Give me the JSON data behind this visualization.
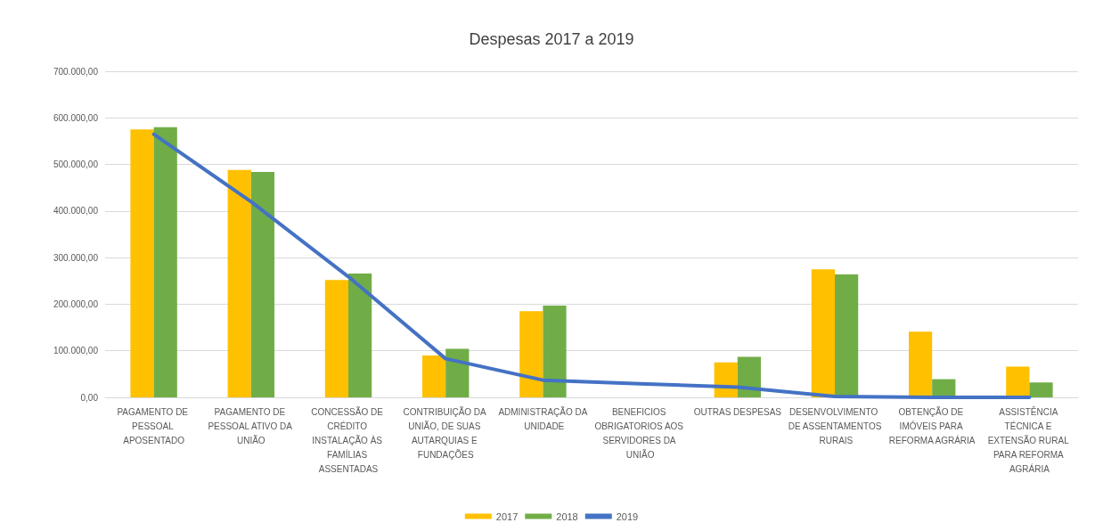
{
  "chart_data": {
    "type": "bar",
    "title": "Despesas 2017 a 2019",
    "categories": [
      "PAGAMENTO DE PESSOAL APOSENTADO",
      "PAGAMENTO DE PESSOAL ATIVO DA UNIÃO",
      "CONCESSÃO DE CRÉDITO INSTALAÇÃO ÀS FAMÍLIAS ASSENTADAS",
      "CONTRIBUIÇÃO DA UNIÃO, DE SUAS AUTARQUIAS E FUNDAÇÕES",
      "ADMINISTRAÇÃO DA UNIDADE",
      "BENEFICIOS OBRIGATORIOS AOS SERVIDORES DA UNIÃO",
      "OUTRAS DESPESAS",
      "DESENVOLVIMENTO DE ASSENTAMENTOS RURAIS",
      "OBTENÇÃO DE IMÓVEIS PARA REFORMA AGRÁRIA",
      "ASSISTÊNCIA TÉCNICA E EXTENSÃO RURAL PARA REFORMA AGRÁRIA"
    ],
    "series": [
      {
        "name": "2017",
        "color": "#ffc000",
        "values": [
          575000,
          488000,
          252000,
          90000,
          185000,
          null,
          75000,
          275000,
          141000,
          66000
        ]
      },
      {
        "name": "2018",
        "color": "#70ad47",
        "values": [
          580000,
          484000,
          266000,
          104000,
          197000,
          null,
          87000,
          264000,
          39000,
          32000
        ]
      },
      {
        "name": "2019",
        "type": "line",
        "color": "#4472c4",
        "values": [
          565000,
          420000,
          259000,
          83000,
          37000,
          29000,
          22000,
          2000,
          0,
          0
        ]
      }
    ],
    "ylim": [
      0,
      700000
    ],
    "yticks": [
      {
        "value": 0,
        "label": "0,00"
      },
      {
        "value": 100000,
        "label": "100.000,00"
      },
      {
        "value": 200000,
        "label": "200.000,00"
      },
      {
        "value": 300000,
        "label": "300.000,00"
      },
      {
        "value": 400000,
        "label": "400.000,00"
      },
      {
        "value": 500000,
        "label": "500.000,00"
      },
      {
        "value": 600000,
        "label": "600.000,00"
      },
      {
        "value": 700000,
        "label": "700.000,00"
      }
    ],
    "grid": "y",
    "legend": "bottom",
    "marker": "none",
    "line_style": "solid"
  }
}
